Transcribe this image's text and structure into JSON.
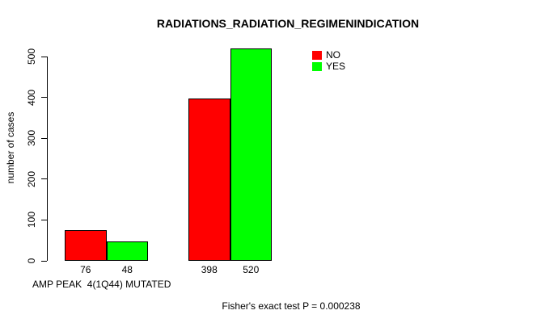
{
  "chart_data": {
    "type": "bar",
    "title": "RADIATIONS_RADIATION_REGIMENINDICATION",
    "ylabel": "number of cases",
    "xlabel": "AMP PEAK  4(1Q44) MUTATED",
    "categories": [
      "",
      ""
    ],
    "series": [
      {
        "name": "NO",
        "color": "#ff0000",
        "values": [
          76,
          398
        ]
      },
      {
        "name": "YES",
        "color": "#00ff00",
        "values": [
          48,
          520
        ]
      }
    ],
    "bar_value_labels": [
      [
        76,
        48
      ],
      [
        398,
        520
      ]
    ],
    "ylim": [
      0,
      500
    ],
    "yticks": [
      0,
      100,
      200,
      300,
      400,
      500
    ],
    "grid": "off",
    "legend_position": "top-right",
    "annotation": "Fisher's exact test P = 0.000238",
    "axis_color": "#000000",
    "text_color": "#000000",
    "background_color": "#ffffff"
  }
}
